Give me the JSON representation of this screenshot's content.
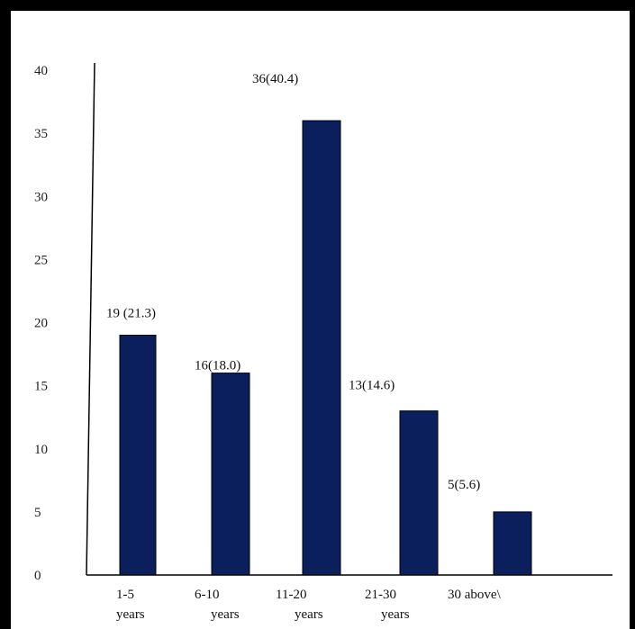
{
  "chart_data": {
    "type": "bar",
    "categories": [
      [
        "1-5",
        "years"
      ],
      [
        "6-10",
        "years"
      ],
      [
        "11-20",
        "years"
      ],
      [
        "21-30",
        "years"
      ],
      [
        "30 above\\",
        ""
      ]
    ],
    "values": [
      19,
      16,
      36,
      13,
      5
    ],
    "data_labels": [
      "19 (21.3)",
      "16(18.0)",
      "36(40.4)",
      "13(14.6)",
      "5(5.6)"
    ],
    "ylim": [
      0,
      40
    ],
    "yticks": [
      0,
      5,
      10,
      15,
      20,
      25,
      30,
      35,
      40
    ],
    "bar_color": "#0a1f5c",
    "grid": false,
    "legend": "none"
  }
}
